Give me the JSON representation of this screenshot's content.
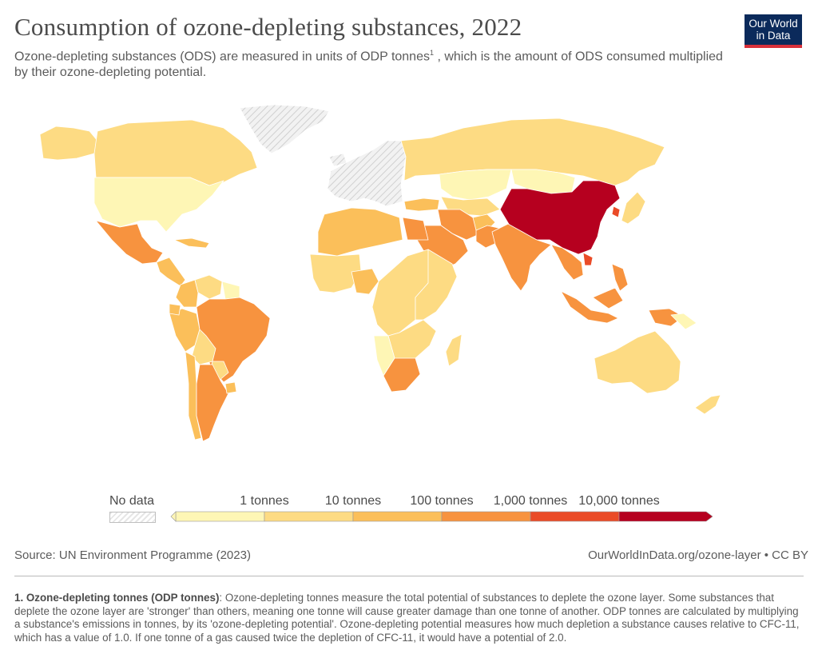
{
  "header": {
    "title": "Consumption of ozone-depleting substances, 2022",
    "subtitle_before": "Ozone-depleting substances (ODS) are measured in units of ODP tonnes",
    "subtitle_sup": "1",
    "subtitle_after": " , which is the amount of ODS consumed multiplied by their ozone-depleting potential."
  },
  "logo": {
    "line1": "Our World",
    "line2": "in Data"
  },
  "colors": {
    "no_data": "#e6e6e6",
    "bin0": "#fef6b5",
    "bin1": "#fddb83",
    "bin2": "#fbbf5a",
    "bin3": "#f7933f",
    "bin4": "#ea4b27",
    "bin5": "#b6001f",
    "border": "#ffffff",
    "ocean": "#ffffff"
  },
  "legend": {
    "no_data_label": "No data",
    "ticks": [
      "1 tonnes",
      "10 tonnes",
      "100 tonnes",
      "1,000 tonnes",
      "10,000 tonnes"
    ]
  },
  "chart_data": {
    "type": "choropleth",
    "year": 2022,
    "unit": "ODP tonnes",
    "bins": [
      {
        "max": 1
      },
      {
        "min": 1,
        "max": 10
      },
      {
        "min": 10,
        "max": 100
      },
      {
        "min": 100,
        "max": 1000
      },
      {
        "min": 1000,
        "max": 10000
      },
      {
        "min": 10000
      }
    ],
    "regions": [
      {
        "name": "Greenland",
        "bin": "no_data"
      },
      {
        "name": "Alaska",
        "bin": 1
      },
      {
        "name": "Canada",
        "bin": 1
      },
      {
        "name": "United States",
        "bin": 0
      },
      {
        "name": "Mexico",
        "bin": 3
      },
      {
        "name": "Central America",
        "bin": 2
      },
      {
        "name": "Caribbean",
        "bin": 2
      },
      {
        "name": "Colombia",
        "bin": 2
      },
      {
        "name": "Venezuela",
        "bin": 1
      },
      {
        "name": "Guianas",
        "bin": 0
      },
      {
        "name": "Peru",
        "bin": 2
      },
      {
        "name": "Ecuador",
        "bin": 2
      },
      {
        "name": "Brazil",
        "bin": 3
      },
      {
        "name": "Bolivia",
        "bin": 1
      },
      {
        "name": "Paraguay",
        "bin": 1
      },
      {
        "name": "Chile",
        "bin": 2
      },
      {
        "name": "Argentina",
        "bin": 3
      },
      {
        "name": "Uruguay",
        "bin": 2
      },
      {
        "name": "Iceland",
        "bin": "no_data"
      },
      {
        "name": "Europe (EU)",
        "bin": "no_data"
      },
      {
        "name": "Russia",
        "bin": 1
      },
      {
        "name": "Kazakhstan",
        "bin": 0
      },
      {
        "name": "Central Asia",
        "bin": 1
      },
      {
        "name": "Mongolia",
        "bin": 0
      },
      {
        "name": "China",
        "bin": 5
      },
      {
        "name": "South Korea",
        "bin": 4
      },
      {
        "name": "Japan",
        "bin": 1
      },
      {
        "name": "Turkey",
        "bin": 2
      },
      {
        "name": "Iran",
        "bin": 3
      },
      {
        "name": "Saudi Arabia",
        "bin": 3
      },
      {
        "name": "Afghanistan",
        "bin": 2
      },
      {
        "name": "Pakistan",
        "bin": 3
      },
      {
        "name": "India",
        "bin": 3
      },
      {
        "name": "Southeast Asia mainland",
        "bin": 3
      },
      {
        "name": "Vietnam",
        "bin": 4
      },
      {
        "name": "Indonesia",
        "bin": 3
      },
      {
        "name": "Philippines",
        "bin": 3
      },
      {
        "name": "Papua New Guinea",
        "bin": 0
      },
      {
        "name": "Australia",
        "bin": 1
      },
      {
        "name": "New Zealand",
        "bin": 1
      },
      {
        "name": "North Africa",
        "bin": 2
      },
      {
        "name": "Egypt",
        "bin": 3
      },
      {
        "name": "West Africa",
        "bin": 1
      },
      {
        "name": "Nigeria",
        "bin": 2
      },
      {
        "name": "Central Africa",
        "bin": 1
      },
      {
        "name": "East Africa",
        "bin": 1
      },
      {
        "name": "Southern Africa",
        "bin": 1
      },
      {
        "name": "Namibia",
        "bin": 0
      },
      {
        "name": "South Africa",
        "bin": 3
      },
      {
        "name": "Madagascar",
        "bin": 1
      }
    ]
  },
  "footer": {
    "source": "Source: UN Environment Programme (2023)",
    "url": "OurWorldInData.org/ozone-layer • CC BY",
    "note_title": "1. Ozone-depleting tonnes (ODP tonnes)",
    "note_text": ": Ozone-depleting tonnes measure the total potential of substances to deplete the ozone layer. Some substances that deplete the ozone layer are 'stronger' than others, meaning one tonne will cause greater damage than one tonne of another. ODP tonnes are calculated by multiplying a substance's emissions in tonnes, by its 'ozone-depleting potential'. Ozone-depleting potential measures how much depletion a substance causes relative to CFC-11, which has a value of 1.0. If one tonne of a gas caused twice the depletion of CFC-11, it would have a potential of 2.0."
  }
}
